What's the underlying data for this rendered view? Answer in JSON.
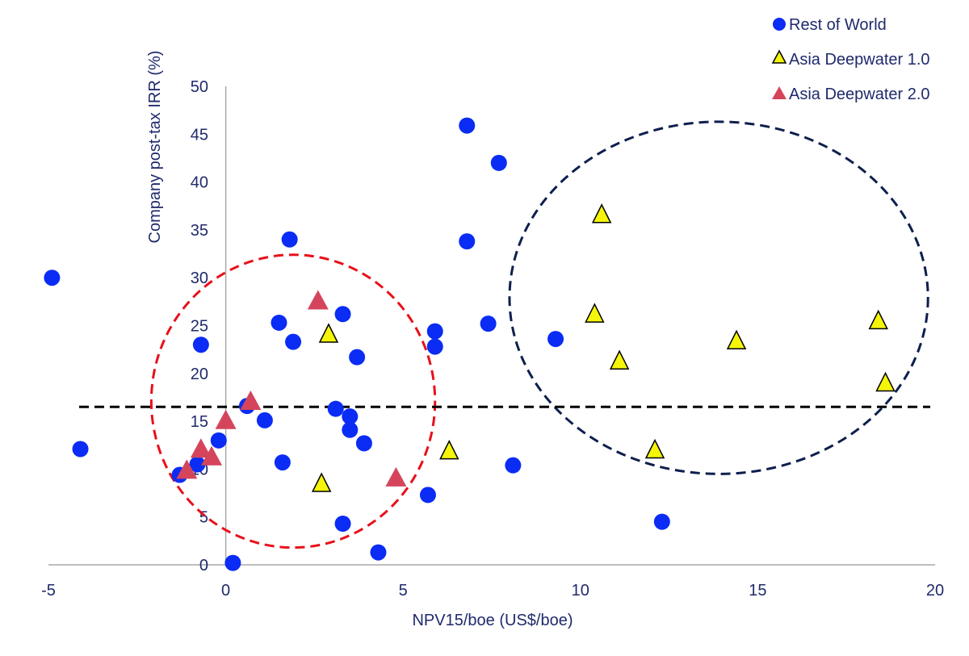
{
  "chart_data": {
    "type": "scatter",
    "title": "",
    "xlabel": "NPV15/boe (US$/boe)",
    "ylabel": "Company post-tax IRR (%)",
    "xlim": [
      -5,
      20
    ],
    "ylim": [
      0,
      50
    ],
    "xticks": [
      -5,
      0,
      5,
      10,
      15,
      20
    ],
    "xtick_labels": [
      "-5",
      "0",
      "5",
      "10",
      "15",
      "20"
    ],
    "yticks": [
      0,
      5,
      10,
      15,
      20,
      25,
      30,
      35,
      40,
      45,
      50
    ],
    "ytick_labels": [
      "0",
      "5",
      "10",
      "15",
      "20",
      "25",
      "30",
      "35",
      "40",
      "45",
      "50"
    ],
    "grid": false,
    "legend_position": "top-right",
    "series": [
      {
        "name": "Rest of World",
        "marker": "circle",
        "color": "#0a2cf5",
        "points": [
          [
            -4.9,
            30.0
          ],
          [
            -4.1,
            12.1
          ],
          [
            -0.7,
            23.0
          ],
          [
            -0.8,
            10.5
          ],
          [
            -1.3,
            9.4
          ],
          [
            -0.2,
            13.0
          ],
          [
            0.6,
            16.6
          ],
          [
            0.2,
            0.2
          ],
          [
            1.1,
            15.1
          ],
          [
            1.6,
            10.7
          ],
          [
            1.5,
            25.3
          ],
          [
            1.9,
            23.3
          ],
          [
            1.8,
            34.0
          ],
          [
            3.3,
            26.2
          ],
          [
            3.7,
            21.7
          ],
          [
            3.1,
            16.3
          ],
          [
            3.5,
            15.5
          ],
          [
            3.5,
            14.1
          ],
          [
            3.9,
            12.7
          ],
          [
            3.3,
            4.3
          ],
          [
            4.3,
            1.3
          ],
          [
            5.7,
            7.3
          ],
          [
            5.9,
            24.4
          ],
          [
            5.9,
            22.8
          ],
          [
            6.8,
            33.8
          ],
          [
            6.8,
            45.9
          ],
          [
            7.7,
            42.0
          ],
          [
            7.4,
            25.2
          ],
          [
            8.1,
            10.4
          ],
          [
            9.3,
            23.6
          ],
          [
            12.3,
            4.5
          ]
        ]
      },
      {
        "name": "Asia Deepwater 1.0",
        "marker": "triangle",
        "color": "#f5f50a",
        "points": [
          [
            2.9,
            24.2
          ],
          [
            2.7,
            8.6
          ],
          [
            6.3,
            12.0
          ],
          [
            10.6,
            36.7
          ],
          [
            10.4,
            26.3
          ],
          [
            11.1,
            21.4
          ],
          [
            12.1,
            12.1
          ],
          [
            14.4,
            23.5
          ],
          [
            18.4,
            25.6
          ],
          [
            18.6,
            19.1
          ]
        ]
      },
      {
        "name": "Asia Deepwater 2.0",
        "marker": "triangle",
        "color": "#d4455c",
        "points": [
          [
            2.6,
            27.7
          ],
          [
            0.7,
            17.2
          ],
          [
            0.0,
            15.2
          ],
          [
            -0.7,
            12.2
          ],
          [
            -0.4,
            11.4
          ],
          [
            -1.1,
            10.0
          ],
          [
            4.8,
            9.2
          ]
        ]
      }
    ],
    "reference_lines": [
      {
        "orientation": "horizontal",
        "y": 16.5,
        "style": "dashed",
        "color": "#000000"
      }
    ],
    "annotations": [
      {
        "shape": "ellipse",
        "style": "dashed",
        "color": "#e8101a",
        "cx": 1.9,
        "cy": 17.1,
        "rx": 4.0,
        "ry": 15.3
      },
      {
        "shape": "ellipse",
        "style": "dashed",
        "color": "#0d1f4d",
        "cx": 13.9,
        "cy": 27.9,
        "rx": 5.9,
        "ry": 18.4
      }
    ]
  }
}
